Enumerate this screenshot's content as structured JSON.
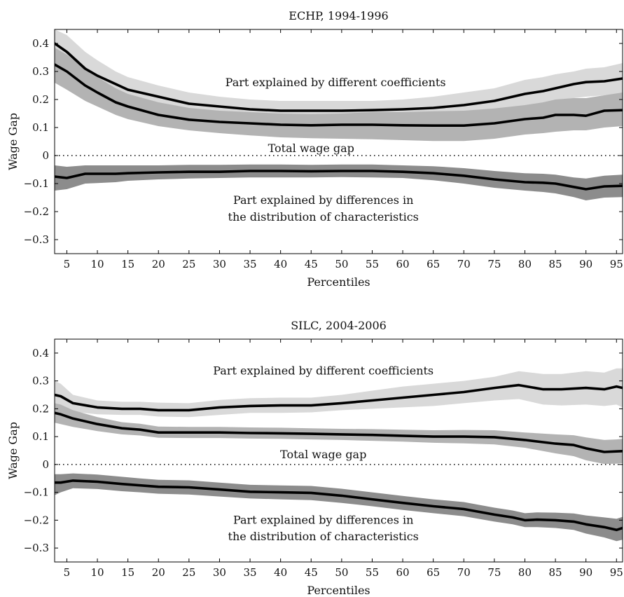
{
  "chart_data": [
    {
      "type": "line",
      "title": "ECHP, 1994-1996",
      "xlabel": "Percentiles",
      "ylabel": "Wage Gap",
      "xlim": [
        3,
        96
      ],
      "ylim": [
        -0.35,
        0.45
      ],
      "xticks": [
        5,
        10,
        15,
        20,
        25,
        30,
        35,
        40,
        45,
        50,
        55,
        60,
        65,
        70,
        75,
        80,
        85,
        90,
        95
      ],
      "yticks": [
        -0.3,
        -0.2,
        -0.1,
        0,
        0.1,
        0.2,
        0.3,
        0.4
      ],
      "ytick_labels": [
        "−0.3",
        "−0.2",
        "−0.1",
        "0",
        "0.1",
        "0.2",
        "0.3",
        "0.4"
      ],
      "zero_line": "dotted",
      "grid": false,
      "annotations": [
        {
          "text": "Part explained by different coefficients",
          "x": 49,
          "y": 0.26
        },
        {
          "text": "Total wage gap",
          "x": 45,
          "y": 0.025
        },
        {
          "text": "Part explained by differences in",
          "x": 47,
          "y": -0.16
        },
        {
          "text": "the distribution of characteristics",
          "x": 47,
          "y": -0.22
        }
      ],
      "series": [
        {
          "key": "coefficients",
          "band_color": "#d9d9d9",
          "x": [
            3,
            5,
            8,
            10,
            13,
            15,
            20,
            25,
            30,
            35,
            40,
            45,
            50,
            55,
            60,
            65,
            70,
            75,
            80,
            83,
            85,
            88,
            90,
            93,
            96
          ],
          "values": [
            0.4,
            0.37,
            0.31,
            0.285,
            0.255,
            0.235,
            0.21,
            0.185,
            0.175,
            0.165,
            0.16,
            0.16,
            0.16,
            0.162,
            0.165,
            0.17,
            0.18,
            0.195,
            0.22,
            0.23,
            0.24,
            0.255,
            0.262,
            0.265,
            0.275
          ],
          "lower": [
            0.34,
            0.31,
            0.26,
            0.235,
            0.205,
            0.19,
            0.17,
            0.15,
            0.14,
            0.135,
            0.13,
            0.13,
            0.13,
            0.13,
            0.13,
            0.13,
            0.135,
            0.15,
            0.17,
            0.185,
            0.19,
            0.205,
            0.21,
            0.215,
            0.22
          ],
          "upper": [
            0.45,
            0.43,
            0.37,
            0.34,
            0.3,
            0.28,
            0.25,
            0.225,
            0.21,
            0.2,
            0.195,
            0.195,
            0.195,
            0.195,
            0.2,
            0.21,
            0.225,
            0.24,
            0.27,
            0.28,
            0.29,
            0.3,
            0.31,
            0.315,
            0.33
          ]
        },
        {
          "key": "total",
          "band_color": "#b3b3b3",
          "x": [
            3,
            5,
            8,
            10,
            13,
            15,
            20,
            25,
            30,
            35,
            40,
            45,
            50,
            55,
            60,
            65,
            70,
            75,
            80,
            83,
            85,
            88,
            90,
            93,
            96
          ],
          "values": [
            0.325,
            0.3,
            0.25,
            0.225,
            0.19,
            0.175,
            0.145,
            0.128,
            0.12,
            0.115,
            0.11,
            0.108,
            0.11,
            0.11,
            0.108,
            0.107,
            0.107,
            0.115,
            0.13,
            0.135,
            0.145,
            0.145,
            0.142,
            0.16,
            0.162
          ],
          "lower": [
            0.26,
            0.235,
            0.195,
            0.175,
            0.145,
            0.13,
            0.105,
            0.09,
            0.08,
            0.072,
            0.065,
            0.062,
            0.06,
            0.058,
            0.055,
            0.052,
            0.052,
            0.06,
            0.075,
            0.08,
            0.085,
            0.09,
            0.09,
            0.1,
            0.105
          ],
          "upper": [
            0.385,
            0.36,
            0.31,
            0.28,
            0.24,
            0.22,
            0.19,
            0.17,
            0.16,
            0.155,
            0.15,
            0.148,
            0.15,
            0.155,
            0.155,
            0.158,
            0.16,
            0.168,
            0.18,
            0.19,
            0.2,
            0.205,
            0.205,
            0.215,
            0.225
          ]
        },
        {
          "key": "characteristics",
          "band_color": "#8c8c8c",
          "x": [
            3,
            5,
            8,
            10,
            13,
            15,
            20,
            25,
            30,
            35,
            40,
            45,
            50,
            55,
            60,
            65,
            70,
            75,
            80,
            83,
            85,
            88,
            90,
            93,
            96
          ],
          "values": [
            -0.075,
            -0.08,
            -0.065,
            -0.065,
            -0.065,
            -0.063,
            -0.06,
            -0.058,
            -0.058,
            -0.055,
            -0.055,
            -0.056,
            -0.055,
            -0.055,
            -0.058,
            -0.063,
            -0.072,
            -0.085,
            -0.095,
            -0.097,
            -0.1,
            -0.112,
            -0.12,
            -0.11,
            -0.108
          ],
          "lower": [
            -0.125,
            -0.12,
            -0.1,
            -0.098,
            -0.095,
            -0.09,
            -0.085,
            -0.082,
            -0.08,
            -0.078,
            -0.078,
            -0.078,
            -0.077,
            -0.078,
            -0.08,
            -0.088,
            -0.1,
            -0.115,
            -0.125,
            -0.13,
            -0.135,
            -0.148,
            -0.16,
            -0.15,
            -0.148
          ],
          "upper": [
            -0.035,
            -0.04,
            -0.035,
            -0.035,
            -0.035,
            -0.035,
            -0.035,
            -0.033,
            -0.033,
            -0.032,
            -0.032,
            -0.033,
            -0.032,
            -0.032,
            -0.035,
            -0.038,
            -0.045,
            -0.055,
            -0.063,
            -0.065,
            -0.068,
            -0.078,
            -0.082,
            -0.072,
            -0.068
          ]
        }
      ]
    },
    {
      "type": "line",
      "title": "SILC, 2004-2006",
      "xlabel": "Percentiles",
      "ylabel": "Wage Gap",
      "xlim": [
        3,
        96
      ],
      "ylim": [
        -0.35,
        0.45
      ],
      "xticks": [
        5,
        10,
        15,
        20,
        25,
        30,
        35,
        40,
        45,
        50,
        55,
        60,
        65,
        70,
        75,
        80,
        85,
        90,
        95
      ],
      "yticks": [
        -0.3,
        -0.2,
        -0.1,
        0,
        0.1,
        0.2,
        0.3,
        0.4
      ],
      "ytick_labels": [
        "−0.3",
        "−0.2",
        "−0.1",
        "0",
        "0.1",
        "0.2",
        "0.3",
        "0.4"
      ],
      "zero_line": "dotted",
      "grid": false,
      "annotations": [
        {
          "text": "Part explained by different coefficients",
          "x": 47,
          "y": 0.335
        },
        {
          "text": "Total wage gap",
          "x": 47,
          "y": 0.035
        },
        {
          "text": "Part explained by differences in",
          "x": 47,
          "y": -0.2
        },
        {
          "text": "the distribution of characteristics",
          "x": 47,
          "y": -0.26
        }
      ],
      "series": [
        {
          "key": "coefficients",
          "band_color": "#d9d9d9",
          "x": [
            3,
            4,
            6,
            10,
            14,
            17,
            20,
            25,
            30,
            35,
            40,
            45,
            50,
            55,
            60,
            65,
            70,
            75,
            79,
            83,
            86,
            90,
            93,
            95,
            96
          ],
          "values": [
            0.25,
            0.245,
            0.22,
            0.205,
            0.2,
            0.2,
            0.195,
            0.195,
            0.205,
            0.21,
            0.212,
            0.212,
            0.22,
            0.23,
            0.24,
            0.25,
            0.26,
            0.275,
            0.285,
            0.27,
            0.27,
            0.275,
            0.27,
            0.28,
            0.275
          ],
          "lower": [
            0.21,
            0.205,
            0.19,
            0.18,
            0.178,
            0.178,
            0.172,
            0.17,
            0.178,
            0.185,
            0.185,
            0.187,
            0.195,
            0.2,
            0.205,
            0.21,
            0.22,
            0.23,
            0.235,
            0.215,
            0.212,
            0.215,
            0.21,
            0.215,
            0.205
          ],
          "upper": [
            0.3,
            0.29,
            0.25,
            0.23,
            0.225,
            0.225,
            0.222,
            0.22,
            0.232,
            0.238,
            0.24,
            0.24,
            0.25,
            0.265,
            0.28,
            0.29,
            0.3,
            0.315,
            0.335,
            0.325,
            0.325,
            0.335,
            0.33,
            0.345,
            0.345
          ]
        },
        {
          "key": "total",
          "band_color": "#b3b3b3",
          "x": [
            3,
            4,
            6,
            10,
            14,
            17,
            20,
            25,
            30,
            35,
            40,
            45,
            50,
            55,
            60,
            65,
            70,
            75,
            80,
            85,
            88,
            90,
            93,
            95,
            96
          ],
          "values": [
            0.185,
            0.18,
            0.165,
            0.145,
            0.13,
            0.125,
            0.115,
            0.115,
            0.115,
            0.113,
            0.112,
            0.11,
            0.108,
            0.106,
            0.103,
            0.1,
            0.1,
            0.098,
            0.088,
            0.075,
            0.07,
            0.058,
            0.045,
            0.047,
            0.048
          ],
          "lower": [
            0.15,
            0.145,
            0.135,
            0.12,
            0.108,
            0.104,
            0.096,
            0.095,
            0.095,
            0.093,
            0.092,
            0.09,
            0.088,
            0.085,
            0.082,
            0.078,
            0.076,
            0.072,
            0.06,
            0.04,
            0.03,
            0.015,
            0.002,
            0.003,
            0.005
          ],
          "upper": [
            0.22,
            0.215,
            0.195,
            0.17,
            0.152,
            0.146,
            0.136,
            0.135,
            0.135,
            0.133,
            0.132,
            0.13,
            0.128,
            0.127,
            0.125,
            0.123,
            0.124,
            0.123,
            0.115,
            0.108,
            0.105,
            0.097,
            0.088,
            0.09,
            0.092
          ]
        },
        {
          "key": "characteristics",
          "band_color": "#8c8c8c",
          "x": [
            3,
            4,
            6,
            10,
            14,
            17,
            20,
            25,
            30,
            35,
            40,
            45,
            50,
            55,
            60,
            65,
            70,
            75,
            78,
            80,
            82,
            85,
            88,
            90,
            93,
            95,
            96
          ],
          "values": [
            -0.065,
            -0.065,
            -0.058,
            -0.062,
            -0.07,
            -0.075,
            -0.08,
            -0.082,
            -0.09,
            -0.098,
            -0.1,
            -0.102,
            -0.112,
            -0.125,
            -0.138,
            -0.15,
            -0.16,
            -0.18,
            -0.19,
            -0.2,
            -0.198,
            -0.2,
            -0.205,
            -0.215,
            -0.225,
            -0.235,
            -0.228
          ],
          "lower": [
            -0.11,
            -0.1,
            -0.085,
            -0.088,
            -0.096,
            -0.1,
            -0.105,
            -0.108,
            -0.115,
            -0.122,
            -0.125,
            -0.128,
            -0.138,
            -0.15,
            -0.163,
            -0.175,
            -0.186,
            -0.205,
            -0.215,
            -0.225,
            -0.225,
            -0.228,
            -0.235,
            -0.248,
            -0.262,
            -0.275,
            -0.27
          ],
          "upper": [
            -0.035,
            -0.035,
            -0.032,
            -0.036,
            -0.044,
            -0.05,
            -0.055,
            -0.057,
            -0.065,
            -0.073,
            -0.075,
            -0.077,
            -0.087,
            -0.1,
            -0.113,
            -0.125,
            -0.135,
            -0.155,
            -0.165,
            -0.175,
            -0.172,
            -0.173,
            -0.176,
            -0.183,
            -0.19,
            -0.195,
            -0.188
          ]
        }
      ]
    }
  ]
}
